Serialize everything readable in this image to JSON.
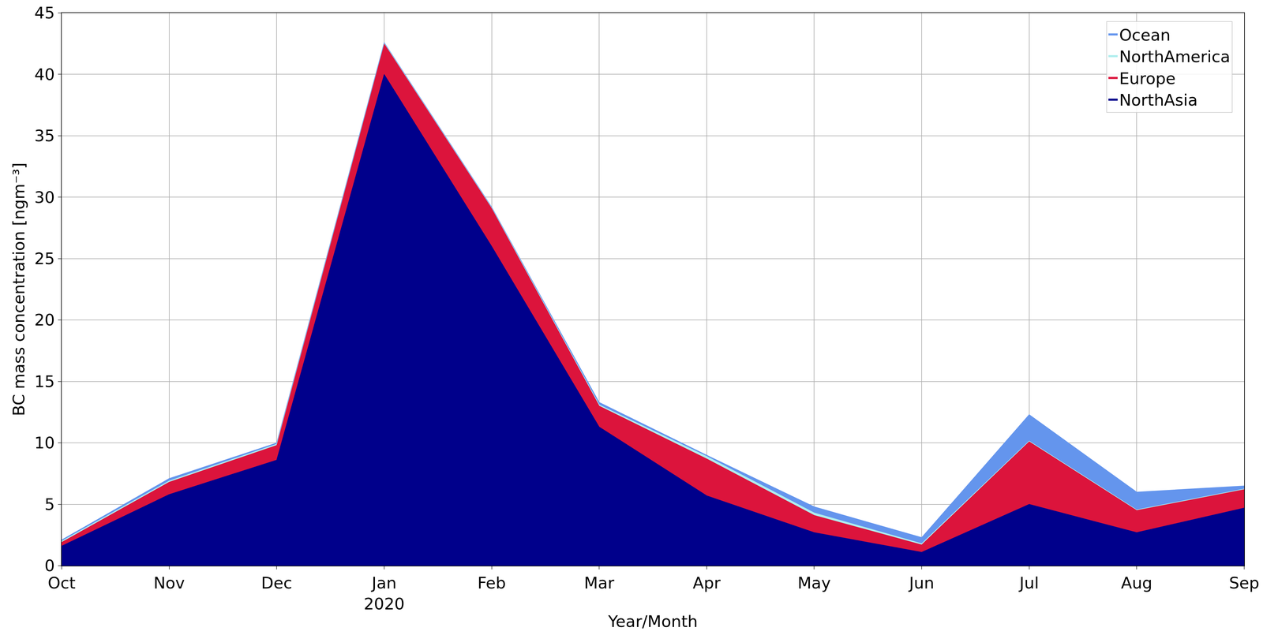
{
  "chart_data": {
    "type": "area",
    "stacked": true,
    "xlabel": "Year/Month",
    "ylabel": "BC mass concentration [ngm⁻³]",
    "categories": [
      "Oct",
      "Nov",
      "Dec",
      "Jan\n2020",
      "Feb",
      "Mar",
      "Apr",
      "May",
      "Jun",
      "Jul",
      "Aug",
      "Sep"
    ],
    "series": [
      {
        "name": "NorthAsia",
        "color": "#00008b",
        "values": [
          1.6,
          5.8,
          8.6,
          40.0,
          26.0,
          11.3,
          5.7,
          2.7,
          1.1,
          5.0,
          2.7,
          4.7
        ]
      },
      {
        "name": "Europe",
        "color": "#dc143c",
        "values": [
          0.3,
          1.0,
          1.2,
          2.5,
          3.1,
          1.7,
          3.0,
          1.4,
          0.6,
          5.1,
          1.8,
          1.5
        ]
      },
      {
        "name": "NorthAmerica",
        "color": "#afeeee",
        "values": [
          0.1,
          0.1,
          0.1,
          0.05,
          0.05,
          0.1,
          0.2,
          0.2,
          0.1,
          0.05,
          0.05,
          0.05
        ]
      },
      {
        "name": "Ocean",
        "color": "#6495ed",
        "values": [
          0.1,
          0.2,
          0.1,
          0.05,
          0.05,
          0.2,
          0.1,
          0.5,
          0.5,
          2.15,
          1.45,
          0.25
        ]
      }
    ],
    "ylim": [
      0,
      45
    ],
    "yticks": [
      0,
      5,
      10,
      15,
      20,
      25,
      30,
      35,
      40,
      45
    ],
    "grid": true,
    "legend": "upper right"
  }
}
